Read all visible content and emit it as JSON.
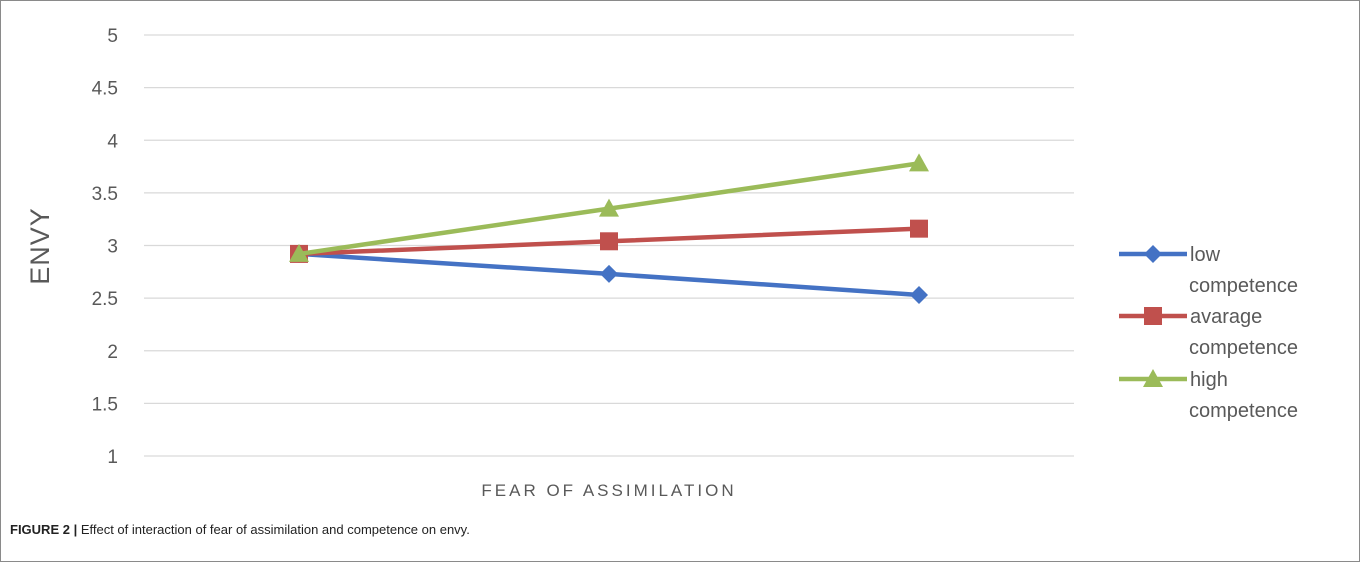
{
  "chart_data": {
    "type": "line",
    "categories": [
      "",
      "",
      ""
    ],
    "series": [
      {
        "name_lines": [
          "low",
          "competence"
        ],
        "values": [
          2.92,
          2.73,
          2.53
        ],
        "color": "#4472C4",
        "marker": "diamond"
      },
      {
        "name_lines": [
          "avarage",
          "competence"
        ],
        "values": [
          2.92,
          3.04,
          3.16
        ],
        "color": "#C0504D",
        "marker": "square"
      },
      {
        "name_lines": [
          "high",
          "competence"
        ],
        "values": [
          2.92,
          3.35,
          3.78
        ],
        "color": "#9BBB59",
        "marker": "triangle"
      }
    ],
    "xlabel": "FEAR OF ASSIMILATION",
    "ylabel": "ENVY",
    "ylim": [
      1,
      5
    ],
    "yticks": [
      "1",
      "1.5",
      "2",
      "2.5",
      "3",
      "3.5",
      "4",
      "4.5",
      "5"
    ],
    "grid": true,
    "legend_position": "right"
  },
  "caption": {
    "label": "FIGURE 2 |",
    "text": " Effect of interaction of fear of assimilation and competence on envy."
  }
}
